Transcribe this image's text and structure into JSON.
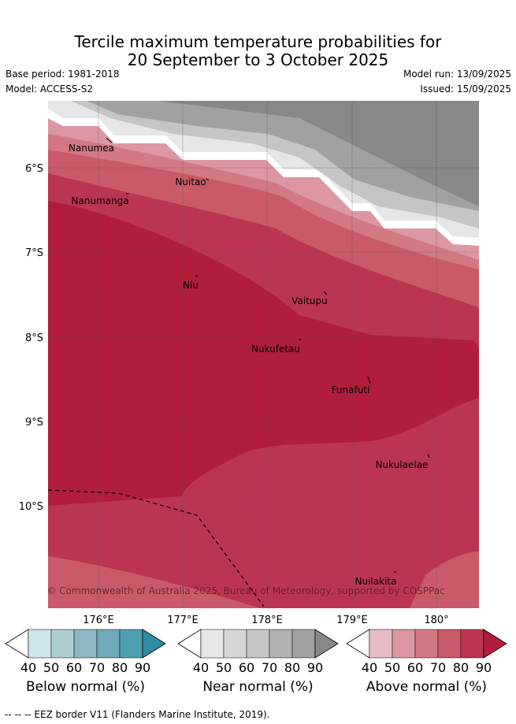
{
  "title_line1": "Tercile maximum temperature probabilities for",
  "title_line2": "20 September to 3 October 2025",
  "base_period": "Base period: 1981-2018",
  "model": "Model: ACCESS-S2",
  "model_run": "Model run: 13/09/2025",
  "issued": "Issued: 15/09/2025",
  "longitude_labels": [
    "176°E",
    "177°E",
    "178°E",
    "179°E",
    "180°"
  ],
  "latitude_labels": [
    "6°S",
    "7°S",
    "8°S",
    "9°S",
    "10°S"
  ],
  "places": [
    "Nanumea",
    "Nuitao",
    "Nanumanga",
    "Niu",
    "Vaitupu",
    "Nukufetau",
    "Funafuti",
    "Nukulaelae",
    "Nuilakita"
  ],
  "copyright": "© Commonwealth of Australia 2025, Bureau of Meteorology, supported by COSPPac",
  "colorbars": [
    {
      "title": "Below normal (%)",
      "ticks": [
        "40",
        "50",
        "60",
        "70",
        "80",
        "90"
      ],
      "colors": [
        "#cfe4ea",
        "#aecdd3",
        "#8db8c3",
        "#6eaab8",
        "#4d9fb1",
        "#2e8ca4"
      ]
    },
    {
      "title": "Near normal (%)",
      "ticks": [
        "40",
        "50",
        "60",
        "70",
        "80",
        "90"
      ],
      "colors": [
        "#e6e6e6",
        "#d5d5d5",
        "#c5c5c5",
        "#b2b2b2",
        "#a1a1a1",
        "#888888"
      ]
    },
    {
      "title": "Above normal (%)",
      "ticks": [
        "40",
        "50",
        "60",
        "70",
        "80",
        "90"
      ],
      "colors": [
        "#e6bcc4",
        "#dc97a2",
        "#d27984",
        "#c95a6a",
        "#bd3450",
        "#b01e3b"
      ]
    }
  ],
  "footer": "--  --  -- EEZ border V11 (Flanders Marine Institute, 2019)."
}
